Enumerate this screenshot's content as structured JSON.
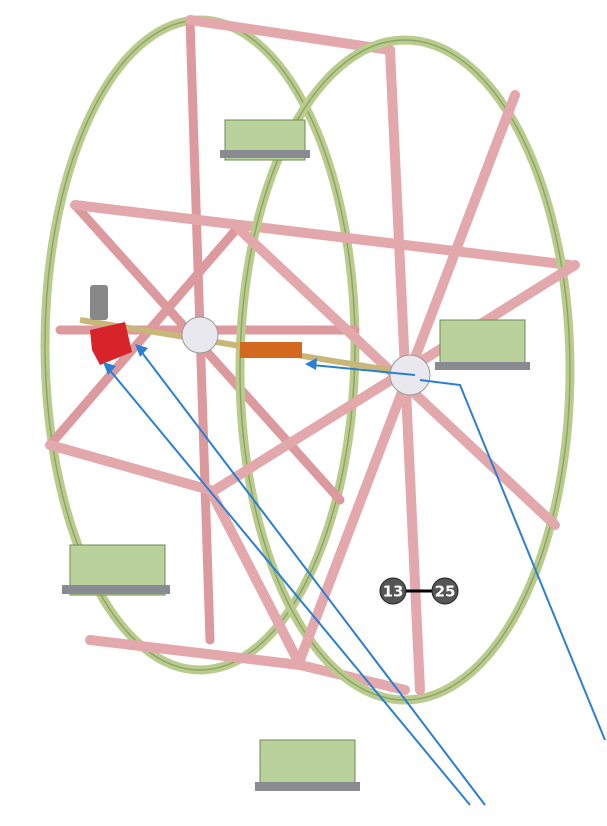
{
  "callouts": {
    "labels": [
      "13",
      "25"
    ]
  }
}
